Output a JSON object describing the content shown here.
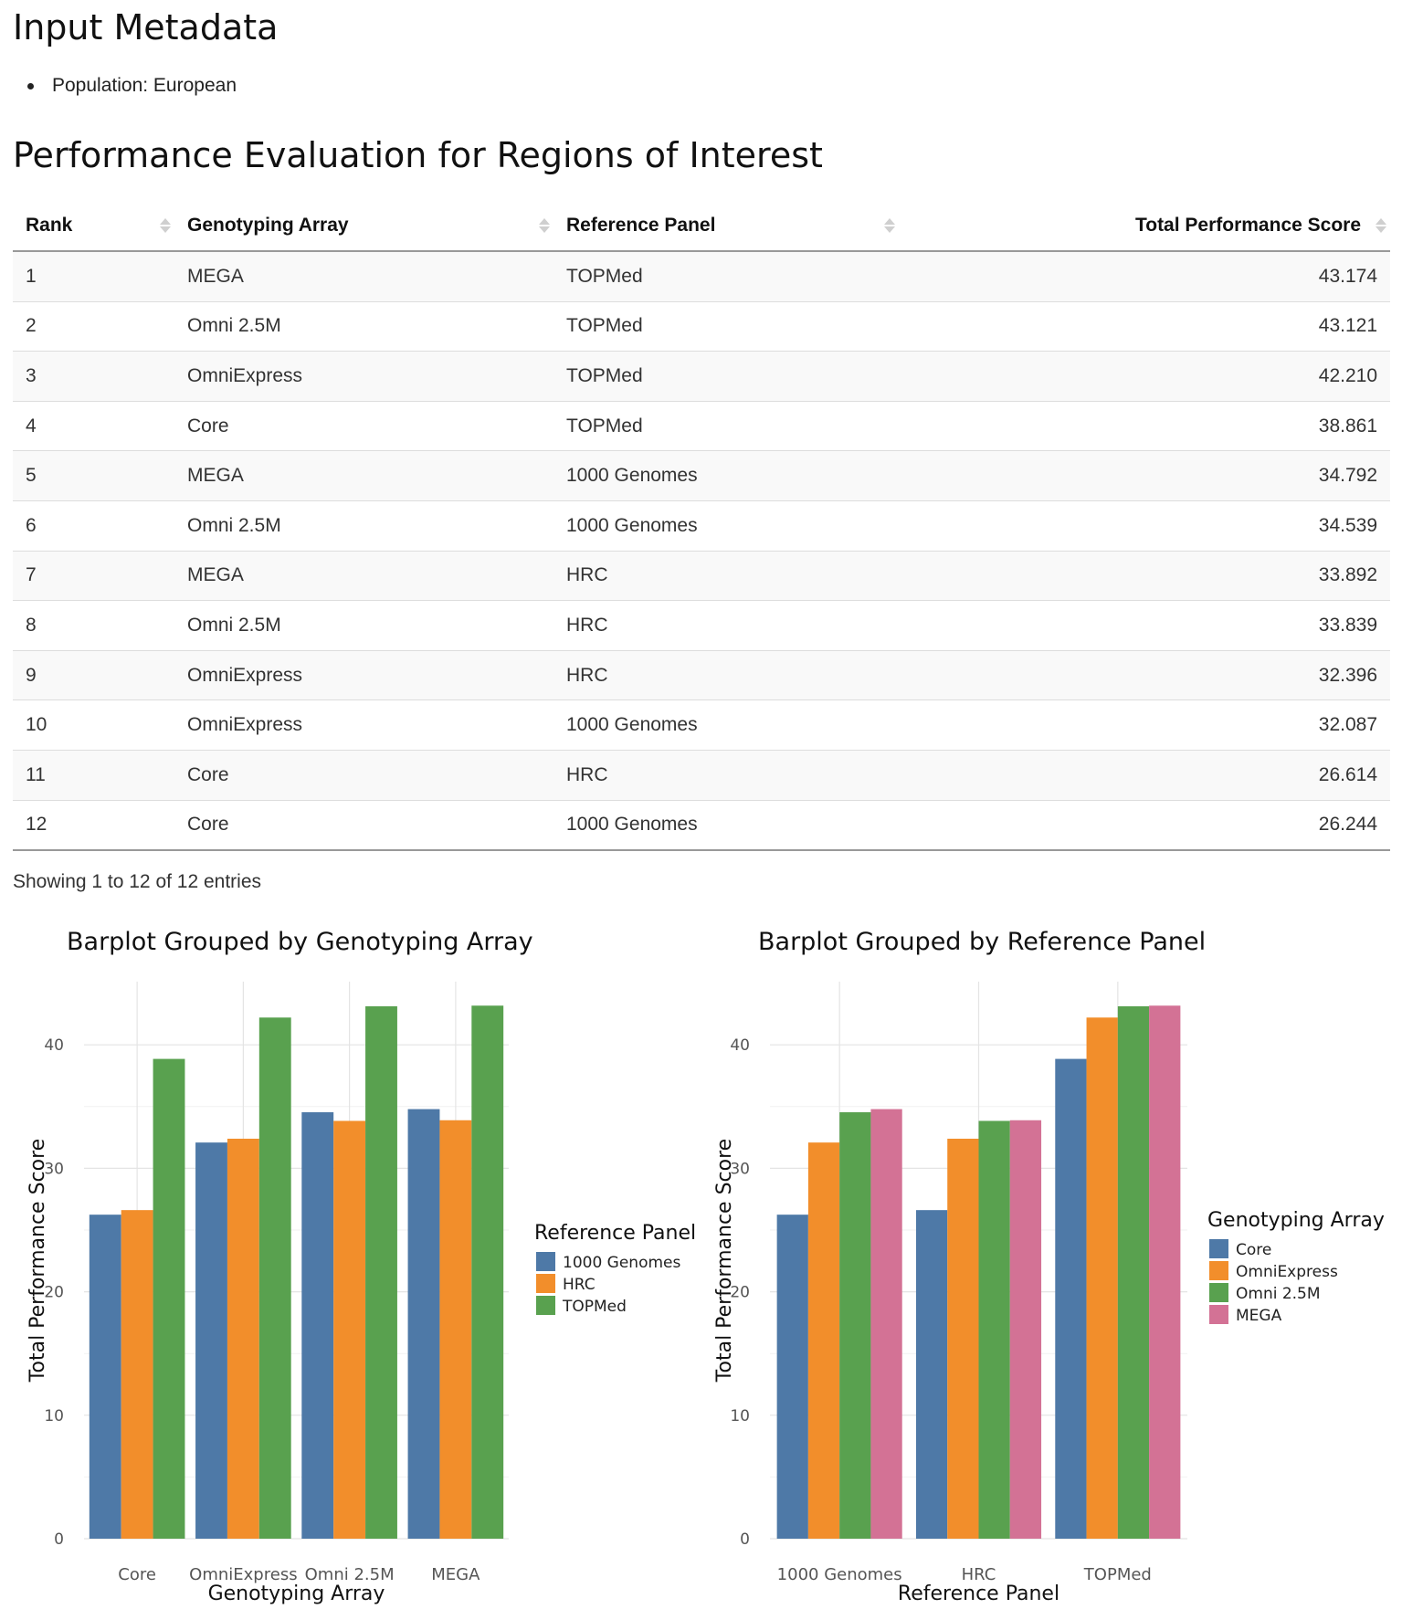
{
  "metadata": {
    "heading": "Input Metadata",
    "items": [
      "Population: European"
    ]
  },
  "performance": {
    "heading": "Performance Evaluation for Regions of Interest",
    "columns": [
      "Rank",
      "Genotyping Array",
      "Reference Panel",
      "Total Performance Score"
    ],
    "rows": [
      [
        "1",
        "MEGA",
        "TOPMed",
        "43.174"
      ],
      [
        "2",
        "Omni 2.5M",
        "TOPMed",
        "43.121"
      ],
      [
        "3",
        "OmniExpress",
        "TOPMed",
        "42.210"
      ],
      [
        "4",
        "Core",
        "TOPMed",
        "38.861"
      ],
      [
        "5",
        "MEGA",
        "1000 Genomes",
        "34.792"
      ],
      [
        "6",
        "Omni 2.5M",
        "1000 Genomes",
        "34.539"
      ],
      [
        "7",
        "MEGA",
        "HRC",
        "33.892"
      ],
      [
        "8",
        "Omni 2.5M",
        "HRC",
        "33.839"
      ],
      [
        "9",
        "OmniExpress",
        "HRC",
        "32.396"
      ],
      [
        "10",
        "OmniExpress",
        "1000 Genomes",
        "32.087"
      ],
      [
        "11",
        "Core",
        "HRC",
        "26.614"
      ],
      [
        "12",
        "Core",
        "1000 Genomes",
        "26.244"
      ]
    ],
    "info": "Showing 1 to 12 of 12 entries"
  },
  "chart_data": [
    {
      "type": "bar",
      "title": "Barplot Grouped by Genotyping Array",
      "xlabel": "Genotyping Array",
      "ylabel": "Total Performance Score",
      "categories": [
        "Core",
        "OmniExpress",
        "Omni 2.5M",
        "MEGA"
      ],
      "legend_title": "Reference Panel",
      "legend_position": "right",
      "grid": true,
      "ylim": [
        0,
        43.174
      ],
      "yticks": [
        0,
        10,
        20,
        30,
        40
      ],
      "series": [
        {
          "name": "1000 Genomes",
          "color": "#4e79a7",
          "values": [
            26.244,
            32.087,
            34.539,
            34.792
          ]
        },
        {
          "name": "HRC",
          "color": "#f28e2b",
          "values": [
            26.614,
            32.396,
            33.839,
            33.892
          ]
        },
        {
          "name": "TOPMed",
          "color": "#59a14f",
          "values": [
            38.861,
            42.21,
            43.121,
            43.174
          ]
        }
      ]
    },
    {
      "type": "bar",
      "title": "Barplot Grouped by Reference Panel",
      "xlabel": "Reference Panel",
      "ylabel": "Total Performance Score",
      "categories": [
        "1000 Genomes",
        "HRC",
        "TOPMed"
      ],
      "legend_title": "Genotyping Array",
      "legend_position": "right",
      "grid": true,
      "ylim": [
        0,
        43.174
      ],
      "yticks": [
        0,
        10,
        20,
        30,
        40
      ],
      "series": [
        {
          "name": "Core",
          "color": "#4e79a7",
          "values": [
            26.244,
            26.614,
            38.861
          ]
        },
        {
          "name": "OmniExpress",
          "color": "#f28e2b",
          "values": [
            32.087,
            32.396,
            42.21
          ]
        },
        {
          "name": "Omni 2.5M",
          "color": "#59a14f",
          "values": [
            34.539,
            33.839,
            43.121
          ]
        },
        {
          "name": "MEGA",
          "color": "#d37295",
          "values": [
            34.792,
            33.892,
            43.174
          ]
        }
      ]
    }
  ]
}
